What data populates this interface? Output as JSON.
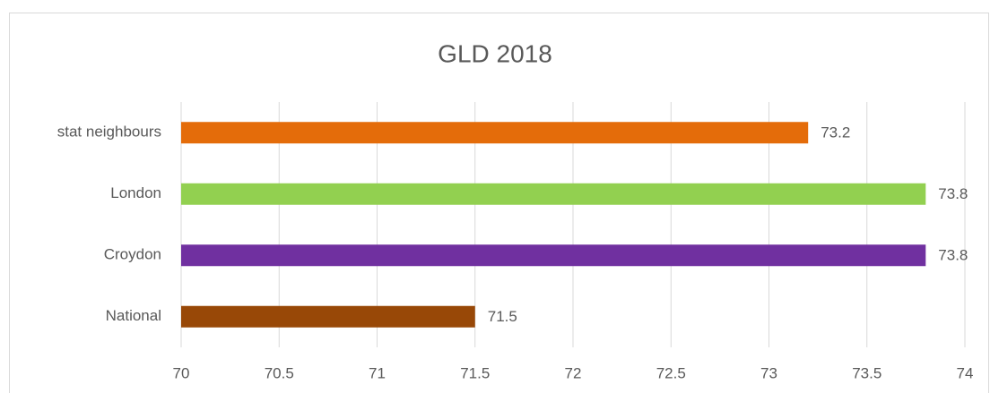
{
  "chart_data": {
    "type": "bar",
    "orientation": "horizontal",
    "title": "GLD 2018",
    "categories": [
      "stat neighbours",
      "London",
      "Croydon",
      "National"
    ],
    "values": [
      73.2,
      73.8,
      73.8,
      71.5
    ],
    "colors": [
      "#e46c0a",
      "#92d050",
      "#7030a0",
      "#984807"
    ],
    "xlim": [
      70,
      74
    ],
    "xticks": [
      70,
      70.5,
      71,
      71.5,
      72,
      72.5,
      73,
      73.5,
      74
    ],
    "grid": true
  }
}
